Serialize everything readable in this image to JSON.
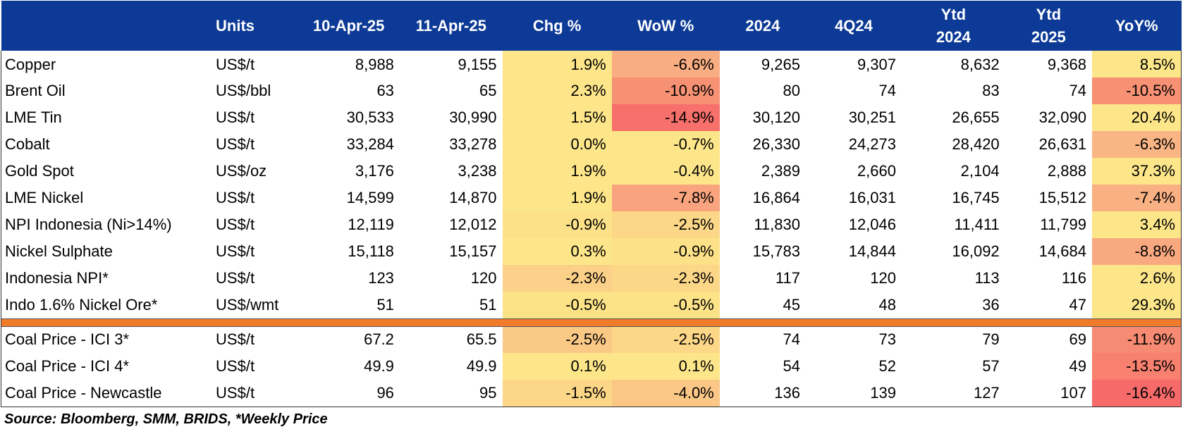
{
  "colors": {
    "header_bg": "#0d3a96",
    "header_text": "#ffffff",
    "separator": "#ef7b2b"
  },
  "headers": {
    "name": "",
    "units": "Units",
    "d1": "10-Apr-25",
    "d2": "11-Apr-25",
    "chg": "Chg %",
    "wow": "WoW %",
    "y2024": "2024",
    "q4": "4Q24",
    "ytd24_line1": "Ytd",
    "ytd24_line2": "2024",
    "ytd25_line1": "Ytd",
    "ytd25_line2": "2025",
    "yoy": "YoY%"
  },
  "metals": [
    {
      "name": "Copper",
      "unit": "US$/t",
      "d1": "8,988",
      "d2": "9,155",
      "chg": "1.9%",
      "wow": "-6.6%",
      "y2024": "9,265",
      "q4": "9,307",
      "ytd24": "8,632",
      "ytd25": "9,368",
      "yoy": "8.5%",
      "chg_color": "#fde68a",
      "wow_color": "#f9ad82",
      "yoy_color": "#fde68a"
    },
    {
      "name": "Brent Oil",
      "unit": "US$/bbl",
      "d1": "63",
      "d2": "65",
      "chg": "2.3%",
      "wow": "-10.9%",
      "y2024": "80",
      "q4": "74",
      "ytd24": "83",
      "ytd25": "74",
      "yoy": "-10.5%",
      "chg_color": "#fde68a",
      "wow_color": "#f79174",
      "yoy_color": "#f79174"
    },
    {
      "name": "LME Tin",
      "unit": "US$/t",
      "d1": "30,533",
      "d2": "30,990",
      "chg": "1.5%",
      "wow": "-14.9%",
      "y2024": "30,120",
      "q4": "30,251",
      "ytd24": "26,655",
      "ytd25": "32,090",
      "yoy": "20.4%",
      "chg_color": "#fde68a",
      "wow_color": "#f7706b",
      "yoy_color": "#fde68a"
    },
    {
      "name": "Cobalt",
      "unit": "US$/t",
      "d1": "33,284",
      "d2": "33,278",
      "chg": "0.0%",
      "wow": "-0.7%",
      "y2024": "26,330",
      "q4": "24,273",
      "ytd24": "28,420",
      "ytd25": "26,631",
      "yoy": "-6.3%",
      "chg_color": "#fde68a",
      "wow_color": "#fde68a",
      "yoy_color": "#f9b584"
    },
    {
      "name": "Gold Spot",
      "unit": "US$/oz",
      "d1": "3,176",
      "d2": "3,238",
      "chg": "1.9%",
      "wow": "-0.4%",
      "y2024": "2,389",
      "q4": "2,660",
      "ytd24": "2,104",
      "ytd25": "2,888",
      "yoy": "37.3%",
      "chg_color": "#fde68a",
      "wow_color": "#fde68a",
      "yoy_color": "#fde68a"
    },
    {
      "name": "LME Nickel",
      "unit": "US$/t",
      "d1": "14,599",
      "d2": "14,870",
      "chg": "1.9%",
      "wow": "-7.8%",
      "y2024": "16,864",
      "q4": "16,031",
      "ytd24": "16,745",
      "ytd25": "15,512",
      "yoy": "-7.4%",
      "chg_color": "#fde68a",
      "wow_color": "#f9a47e",
      "yoy_color": "#f9b082"
    },
    {
      "name": "NPI Indonesia (Ni>14%)",
      "unit": "US$/t",
      "d1": "12,119",
      "d2": "12,012",
      "chg": "-0.9%",
      "wow": "-2.5%",
      "y2024": "11,830",
      "q4": "12,046",
      "ytd24": "11,411",
      "ytd25": "11,799",
      "yoy": "3.4%",
      "chg_color": "#fde188",
      "wow_color": "#fcd788",
      "yoy_color": "#fde68a"
    },
    {
      "name": "Nickel Sulphate",
      "unit": "US$/t",
      "d1": "15,118",
      "d2": "15,157",
      "chg": "0.3%",
      "wow": "-0.9%",
      "y2024": "15,783",
      "q4": "14,844",
      "ytd24": "16,092",
      "ytd25": "14,684",
      "yoy": "-8.8%",
      "chg_color": "#fde68a",
      "wow_color": "#fde188",
      "yoy_color": "#f9a980"
    },
    {
      "name": "Indonesia NPI*",
      "unit": "US$/t",
      "d1": "123",
      "d2": "120",
      "chg": "-2.3%",
      "wow": "-2.3%",
      "y2024": "117",
      "q4": "120",
      "ytd24": "113",
      "ytd25": "116",
      "yoy": "2.6%",
      "chg_color": "#fbd088",
      "wow_color": "#fcd788",
      "yoy_color": "#fde68a"
    },
    {
      "name": "Indo 1.6% Nickel Ore*",
      "unit": "US$/wmt",
      "d1": "51",
      "d2": "51",
      "chg": "-0.5%",
      "wow": "-0.5%",
      "y2024": "45",
      "q4": "48",
      "ytd24": "36",
      "ytd25": "47",
      "yoy": "29.3%",
      "chg_color": "#fde388",
      "wow_color": "#fde388",
      "yoy_color": "#fde68a"
    }
  ],
  "coal": [
    {
      "name": "Coal Price - ICI 3*",
      "unit": "US$/t",
      "d1": "67.2",
      "d2": "65.5",
      "chg": "-2.5%",
      "wow": "-2.5%",
      "y2024": "74",
      "q4": "73",
      "ytd24": "79",
      "ytd25": "69",
      "yoy": "-11.9%",
      "chg_color": "#fbc986",
      "wow_color": "#fcd788",
      "yoy_color": "#f78a72"
    },
    {
      "name": "Coal Price - ICI 4*",
      "unit": "US$/t",
      "d1": "49.9",
      "d2": "49.9",
      "chg": "0.1%",
      "wow": "0.1%",
      "y2024": "54",
      "q4": "52",
      "ytd24": "57",
      "ytd25": "49",
      "yoy": "-13.5%",
      "chg_color": "#fde68a",
      "wow_color": "#fde68a",
      "yoy_color": "#f7806e"
    },
    {
      "name": "Coal Price - Newcastle",
      "unit": "US$/t",
      "d1": "96",
      "d2": "95",
      "chg": "-1.5%",
      "wow": "-4.0%",
      "y2024": "136",
      "q4": "139",
      "ytd24": "127",
      "ytd25": "107",
      "yoy": "-16.4%",
      "chg_color": "#fcd788",
      "wow_color": "#fbc786",
      "yoy_color": "#f66a6a"
    }
  ],
  "footer": {
    "source": "Source: Bloomberg, SMM, BRIDS, *Weekly Price"
  }
}
